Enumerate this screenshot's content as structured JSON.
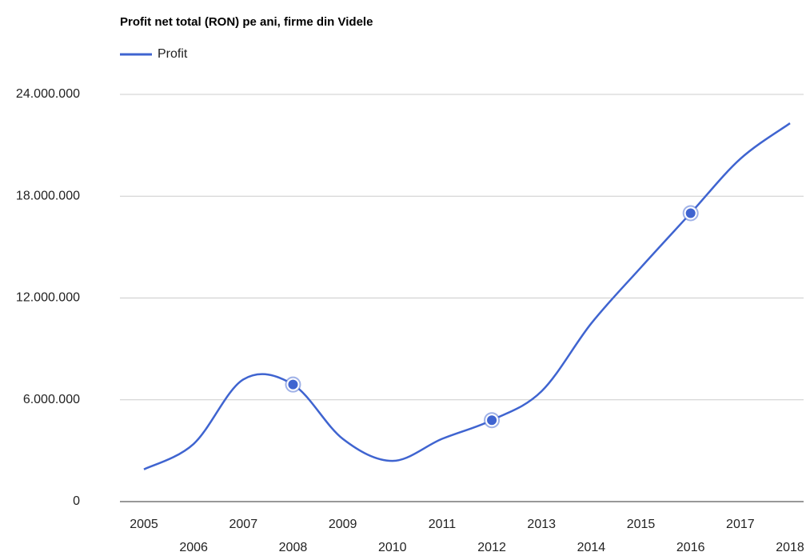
{
  "chart_data": {
    "type": "line",
    "title": "Profit net total (RON) pe ani, firme din Videle",
    "categories": [
      "2005",
      "2006",
      "2007",
      "2008",
      "2009",
      "2010",
      "2011",
      "2012",
      "2013",
      "2014",
      "2015",
      "2016",
      "2017",
      "2018"
    ],
    "series": [
      {
        "name": "Profit",
        "color": "#3f64d0",
        "values": [
          1900000,
          3400000,
          7200000,
          6900000,
          3700000,
          2400000,
          3700000,
          4800000,
          6500000,
          10500000,
          13800000,
          17000000,
          20200000,
          22300000
        ]
      }
    ],
    "markers": [
      3,
      7,
      11
    ],
    "ylim": [
      0,
      24000000
    ],
    "yticks": [
      0,
      {
        "value": 6000000,
        "label": "6.000.000"
      },
      {
        "value": 12000000,
        "label": "12.000.000"
      },
      {
        "value": 18000000,
        "label": "18.000.000"
      },
      {
        "value": 24000000,
        "label": "24.000.000"
      }
    ],
    "grid": true,
    "legend": "top"
  }
}
